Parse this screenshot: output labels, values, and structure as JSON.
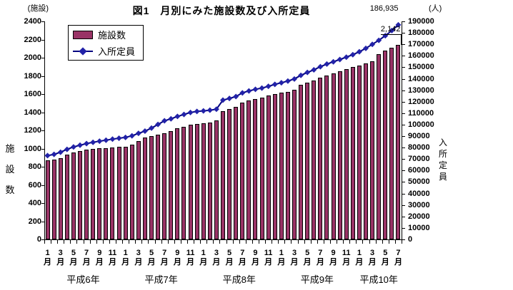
{
  "title": "図1　月別にみた施設数及び入所定員",
  "annotations": {
    "capacity_last": "186,935",
    "facilities_last": "2,142"
  },
  "x_axis": {
    "month_suffix": "月",
    "labeled_months": [
      1,
      3,
      5,
      7,
      9,
      11
    ],
    "years": [
      {
        "label": "平成6年",
        "months": 12
      },
      {
        "label": "平成7年",
        "months": 12
      },
      {
        "label": "平成8年",
        "months": 12
      },
      {
        "label": "平成9年",
        "months": 12
      },
      {
        "label": "平成10年",
        "months": 7
      }
    ]
  },
  "chart_data": {
    "type": "combo",
    "title": "図1　月別にみた施設数及び入所定員",
    "left_axis": {
      "label": "施設数",
      "unit": "(施設)",
      "min": 0,
      "max": 2400,
      "step": 200
    },
    "right_axis": {
      "label": "入所定員",
      "unit": "(人)",
      "min": 0,
      "max": 190000,
      "step": 10000
    },
    "grid": false,
    "legend_position": "top-left-inside",
    "categories_note": "months Jan 1994 (平成6年1月) through Jul 1998 (平成10年7月)",
    "series": [
      {
        "name": "施設数",
        "type": "bar",
        "axis": "left",
        "color": "#993366",
        "values": [
          870,
          878,
          898,
          935,
          958,
          974,
          986,
          994,
          1001,
          1007,
          1013,
          1018,
          1023,
          1044,
          1084,
          1118,
          1136,
          1152,
          1172,
          1194,
          1220,
          1241,
          1260,
          1272,
          1278,
          1290,
          1308,
          1408,
          1434,
          1460,
          1502,
          1528,
          1546,
          1562,
          1584,
          1600,
          1612,
          1626,
          1645,
          1700,
          1724,
          1750,
          1780,
          1806,
          1830,
          1852,
          1874,
          1896,
          1916,
          1938,
          1962,
          2040,
          2075,
          2110,
          2142
        ]
      },
      {
        "name": "入所定員",
        "type": "line",
        "axis": "right",
        "color": "#000080",
        "marker": "diamond",
        "marker_color": "#2222a8",
        "values": [
          73000,
          74100,
          76000,
          78500,
          80600,
          82100,
          83500,
          84600,
          85600,
          86500,
          87400,
          88200,
          88900,
          90300,
          92400,
          94400,
          97000,
          100200,
          103400,
          105100,
          107200,
          108900,
          110600,
          111500,
          112000,
          112600,
          113500,
          121400,
          122900,
          124500,
          127700,
          129400,
          130800,
          131900,
          133400,
          135100,
          136500,
          138000,
          139800,
          143000,
          145500,
          147800,
          150500,
          152800,
          154800,
          156800,
          158800,
          161000,
          163500,
          166500,
          170000,
          173500,
          177500,
          182000,
          186935
        ]
      }
    ]
  }
}
